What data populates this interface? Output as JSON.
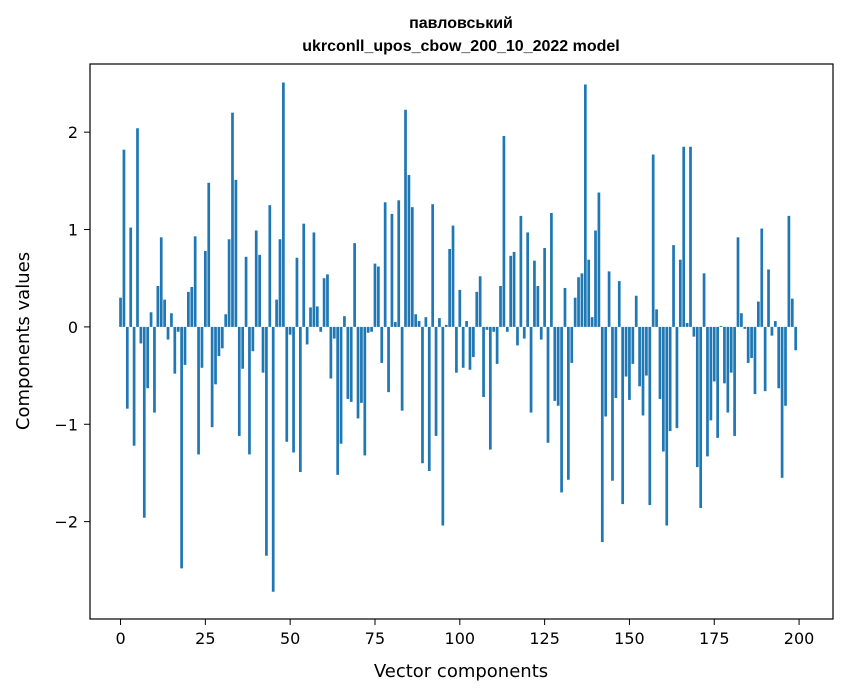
{
  "chart_data": {
    "type": "bar",
    "title": "павловський",
    "subtitle": "ukrconll_upos_cbow_200_10_2022 model",
    "xlabel": "Vector components",
    "ylabel": "Components values",
    "xlim": [
      -9,
      210
    ],
    "ylim": [
      -3,
      2.7
    ],
    "xticks": [
      0,
      25,
      50,
      75,
      100,
      125,
      150,
      175,
      200
    ],
    "xtick_labels": [
      "0",
      "25",
      "50",
      "75",
      "100",
      "125",
      "150",
      "175",
      "200"
    ],
    "yticks": [
      -2,
      -1,
      0,
      1,
      2
    ],
    "ytick_labels": [
      "−2",
      "−1",
      "0",
      "1",
      "2"
    ],
    "grid": false,
    "bar_color": "#1f77b4",
    "values": [
      0.3,
      1.82,
      -0.84,
      1.02,
      -1.22,
      2.04,
      -0.17,
      -1.96,
      -0.63,
      0.15,
      -0.88,
      0.42,
      0.92,
      0.28,
      -0.13,
      0.14,
      -0.48,
      -0.05,
      -2.48,
      -0.39,
      0.36,
      0.41,
      0.93,
      -1.31,
      -0.42,
      0.78,
      1.48,
      -1.03,
      -0.59,
      -0.3,
      -0.22,
      0.13,
      0.9,
      2.2,
      1.51,
      -1.12,
      -0.43,
      0.72,
      -1.31,
      -0.25,
      0.99,
      0.74,
      -0.47,
      -2.35,
      1.25,
      -2.72,
      0.28,
      0.9,
      2.51,
      -1.18,
      -0.08,
      -1.29,
      0.71,
      -1.49,
      1.06,
      -0.18,
      0.2,
      0.97,
      0.21,
      -0.05,
      0.5,
      0.54,
      -0.53,
      -0.12,
      -1.52,
      -1.2,
      0.11,
      -0.74,
      -0.77,
      0.86,
      -0.94,
      -0.78,
      -1.32,
      -0.06,
      -0.05,
      0.65,
      0.62,
      -0.37,
      1.28,
      -0.67,
      1.16,
      0.05,
      1.3,
      -0.86,
      2.23,
      1.56,
      1.23,
      0.13,
      0.06,
      -1.4,
      0.1,
      -1.48,
      1.26,
      -1.12,
      0.09,
      -2.04,
      0.02,
      0.8,
      1.04,
      -0.47,
      0.38,
      -0.42,
      0.06,
      -0.44,
      -0.31,
      0.36,
      0.52,
      -0.72,
      -0.03,
      -1.26,
      -0.05,
      -0.38,
      0.42,
      1.96,
      -0.05,
      0.73,
      0.77,
      -0.19,
      1.14,
      -0.12,
      0.97,
      -0.88,
      0.68,
      0.42,
      -0.13,
      0.81,
      -1.19,
      1.17,
      -0.76,
      -0.81,
      -1.7,
      0.4,
      -1.57,
      -0.37,
      0.3,
      0.51,
      0.55,
      2.49,
      0.69,
      0.1,
      0.99,
      1.38,
      -2.21,
      -0.92,
      0.57,
      -1.58,
      -0.73,
      0.47,
      -1.82,
      -0.51,
      -0.75,
      -0.38,
      0.32,
      -0.61,
      -0.91,
      -0.5,
      -1.83,
      1.77,
      0.18,
      -0.74,
      -1.28,
      -2.04,
      -1.07,
      0.84,
      -1.04,
      0.69,
      1.85,
      0.04,
      1.85,
      -0.1,
      -1.44,
      -1.86,
      0.55,
      -1.33,
      -0.96,
      -0.56,
      -1.14,
      0.01,
      -0.58,
      -0.88,
      -0.47,
      -1.12,
      0.92,
      0.14,
      -0.02,
      -0.37,
      -0.32,
      -0.69,
      0.26,
      1.01,
      -0.66,
      0.59,
      -0.09,
      0.06,
      -0.63,
      -1.55,
      -0.81,
      1.14,
      0.29,
      -0.24
    ]
  }
}
